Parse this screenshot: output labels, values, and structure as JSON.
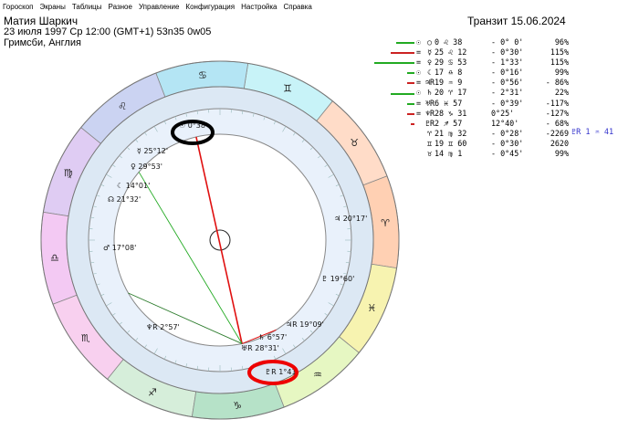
{
  "menu": [
    "Гороскоп",
    "Экраны",
    "Таблицы",
    "Разное",
    "Управление",
    "Конфигурация",
    "Настройка",
    "Справка"
  ],
  "header": {
    "name": "Матия Шаркич",
    "datetime": "23 июля 1997  Ср  12:00 (GMT+1) 53n35  0w05",
    "place": "Гримсби, Англия",
    "transit": "Транзит 15.06.2024"
  },
  "zodiac_colors": [
    "#ffd0b3",
    "#ffdcc8",
    "#c8f3f8",
    "#b4e5f4",
    "#cbd3f2",
    "#dfccf3",
    "#f3c9f3",
    "#f8d0ef",
    "#d6eeda",
    "#b6e2c8",
    "#e6f7c2",
    "#f7f3b0"
  ],
  "zodiac_icons": [
    "aries-icon",
    "taurus-icon",
    "gemini-icon",
    "cancer-icon",
    "leo-icon",
    "virgo-icon",
    "libra-icon",
    "scorpio-icon",
    "sagittarius-icon",
    "capricorn-icon",
    "aquarius-icon",
    "pisces-icon"
  ],
  "zodiac_glyphs": [
    "♈",
    "♉",
    "♊",
    "♋",
    "♌",
    "♍",
    "♎",
    "♏",
    "♐",
    "♑",
    "♒",
    "♓"
  ],
  "outer_labels": [
    {
      "text": "☉ 0°38'"
    },
    {
      "text": "☿ 25°12'"
    },
    {
      "text": "♀ 29°53'"
    },
    {
      "text": "☾ 14°01'"
    },
    {
      "text": "☊ 21°32'"
    },
    {
      "text": "♂ 17°08'"
    },
    {
      "text": "♆R 2°57'"
    },
    {
      "text": "♅R 28°31'"
    },
    {
      "text": "♄ 6°57'"
    },
    {
      "text": "♃R 19°09'"
    },
    {
      "text": "♇R 1°41'"
    },
    {
      "text": "♃ 20°17'"
    },
    {
      "text": "♇ 19°60'"
    }
  ],
  "table": [
    {
      "g1": "☉",
      "g2": "○",
      "pos": "0 ♌ 38",
      "orb": "- 0° 0'",
      "pct": "96%",
      "color": "#000"
    },
    {
      "g1": "=",
      "g2": "☿",
      "pos": "25 ♌ 12",
      "orb": "- 0°30'",
      "pct": "115%",
      "color": "#000"
    },
    {
      "g1": "=",
      "g2": "♀",
      "pos": "29 ♋ 53",
      "orb": "- 1°33'",
      "pct": "115%",
      "color": "#000"
    },
    {
      "g1": "☉",
      "g2": "☾",
      "pos": "17 ♎ 8",
      "orb": "- 0°16'",
      "pct": "99%",
      "color": "#000"
    },
    {
      "g1": "=",
      "g2": "♃R",
      "pos": "19 ♒ 9",
      "orb": "- 0°56'",
      "pct": "- 86%",
      "color": "#000"
    },
    {
      "g1": "☉",
      "g2": "♄",
      "pos": "20 ♈ 17",
      "orb": "- 2°31'",
      "pct": "22%",
      "color": "#000"
    },
    {
      "g1": "=",
      "g2": "♅R",
      "pos": "6 ♓ 57",
      "orb": "- 0°39'",
      "pct": "-117%",
      "color": "#000"
    },
    {
      "g1": "=",
      "g2": "♆R",
      "pos": "28 ♑ 31",
      "orb": "0°25'",
      "pct": "-127%",
      "color": "#000"
    },
    {
      "g1": "",
      "g2": "♇R",
      "pos": "2 ♐ 57",
      "orb": "12°40'",
      "pct": "- 68%",
      "color": "#000"
    },
    {
      "g1": "",
      "g2": "♈",
      "pos": "21 ♍ 32",
      "orb": "- 0°28'",
      "pct": "-2269",
      "color": "#000"
    },
    {
      "g1": "",
      "g2": "♊",
      "pos": "19 ♊ 60",
      "orb": "- 0°30'",
      "pct": "2620",
      "color": "#000"
    },
    {
      "g1": "",
      "g2": "♉",
      "pos": "14 ♍ 1",
      "orb": "- 0°45'",
      "pct": "99%",
      "color": "#000"
    }
  ],
  "transit_note": "♇R  1 ♒ 41",
  "colors": {
    "red": "#e01010",
    "green": "#22aa22",
    "accent": "#0000cc"
  }
}
